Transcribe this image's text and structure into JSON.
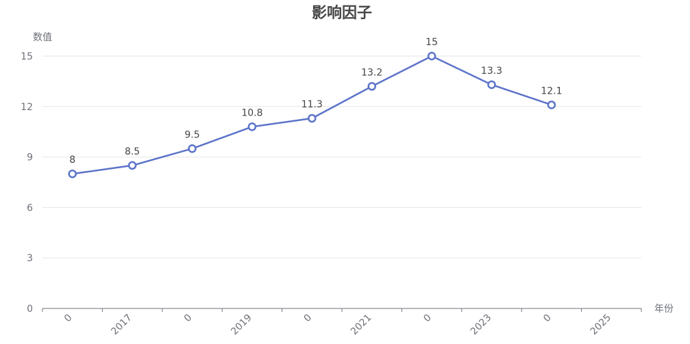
{
  "chart_data": {
    "type": "line",
    "title": "影响因子",
    "ylabel": "数值",
    "xlabel": "年份",
    "ylim": [
      0,
      15
    ],
    "yticks": [
      0,
      3,
      6,
      9,
      12,
      15
    ],
    "xtick_labels": [
      "0",
      "2017",
      "0",
      "2019",
      "0",
      "2021",
      "0",
      "2023",
      "0",
      "2025"
    ],
    "series": [
      {
        "color": "#5b73c9",
        "points": [
          {
            "slot": 0,
            "value": 8,
            "label": "8"
          },
          {
            "slot": 1,
            "value": 8.5,
            "label": "8.5"
          },
          {
            "slot": 2,
            "value": 9.5,
            "label": "9.5"
          },
          {
            "slot": 3,
            "value": 10.8,
            "label": "10.8"
          },
          {
            "slot": 4,
            "value": 11.3,
            "label": "11.3"
          },
          {
            "slot": 5,
            "value": 13.2,
            "label": "13.2"
          },
          {
            "slot": 6,
            "value": 15,
            "label": "15"
          },
          {
            "slot": 7,
            "value": 13.3,
            "label": "13.3"
          },
          {
            "slot": 8,
            "value": 12.1,
            "label": "12.1"
          }
        ]
      }
    ]
  }
}
